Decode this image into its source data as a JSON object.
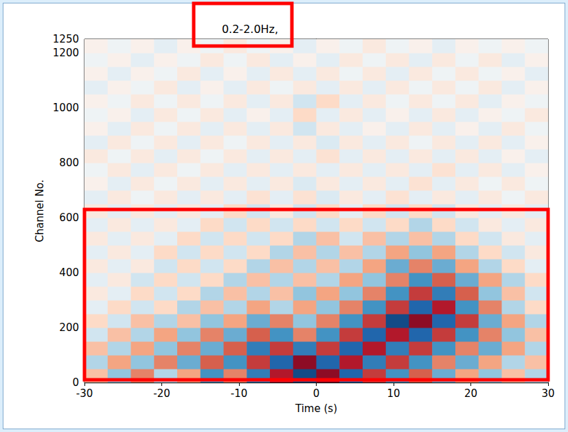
{
  "chart_data": {
    "type": "heatmap",
    "title": "0.2-2.0Hz,",
    "x_label": "Time (s)",
    "y_label": "Channel No.",
    "xlim": [
      -30,
      30
    ],
    "xticks": [
      -30,
      -20,
      -10,
      0,
      10,
      20,
      30
    ],
    "ylim": [
      0,
      1250
    ],
    "yticks": [
      0,
      200,
      400,
      600,
      800,
      1000,
      1200
    ],
    "grid": false,
    "time_bins": [
      -30,
      -27,
      -24,
      -21,
      -18,
      -15,
      -12,
      -9,
      -6,
      -3,
      0,
      3,
      6,
      9,
      12,
      15,
      18,
      21,
      24,
      27,
      30
    ],
    "channel_bins": [
      0,
      50,
      100,
      150,
      200,
      250,
      300,
      350,
      400,
      450,
      500,
      550,
      600,
      650,
      700,
      750,
      800,
      850,
      900,
      950,
      1000,
      1050,
      1100,
      1150,
      1200,
      1250
    ],
    "color_range": [
      -1,
      1
    ],
    "cells": [
      [
        0.3,
        -0.4,
        0.5,
        -0.3,
        0.4,
        -0.6,
        0.5,
        -0.7,
        0.8,
        -0.9,
        0.9,
        -0.8,
        0.7,
        -0.6,
        0.6,
        -0.5,
        0.4,
        -0.4,
        0.3,
        -0.3
      ],
      [
        -0.3,
        0.4,
        -0.4,
        0.5,
        -0.5,
        0.6,
        -0.6,
        0.7,
        -0.8,
        0.9,
        -0.8,
        0.8,
        -0.7,
        0.7,
        -0.6,
        0.5,
        -0.5,
        0.4,
        -0.3,
        0.3
      ],
      [
        0.3,
        -0.3,
        0.4,
        -0.4,
        0.5,
        -0.5,
        0.6,
        -0.7,
        0.7,
        -0.7,
        0.7,
        -0.8,
        0.8,
        -0.7,
        0.7,
        -0.6,
        0.5,
        -0.5,
        0.4,
        -0.3
      ],
      [
        -0.2,
        0.3,
        -0.3,
        0.4,
        -0.4,
        0.5,
        -0.5,
        0.6,
        -0.6,
        0.5,
        -0.6,
        0.7,
        -0.8,
        0.8,
        -0.8,
        0.7,
        -0.6,
        0.5,
        -0.4,
        0.3
      ],
      [
        0.2,
        -0.2,
        0.3,
        -0.3,
        0.3,
        -0.4,
        0.4,
        -0.5,
        0.5,
        -0.4,
        0.5,
        -0.6,
        0.7,
        -0.9,
        0.9,
        -0.8,
        0.7,
        -0.5,
        0.4,
        -0.3
      ],
      [
        -0.1,
        0.2,
        -0.2,
        0.2,
        -0.3,
        0.3,
        -0.3,
        0.4,
        -0.3,
        0.4,
        -0.4,
        0.5,
        -0.6,
        0.7,
        -0.8,
        0.8,
        -0.6,
        0.5,
        -0.3,
        0.2
      ],
      [
        0.1,
        -0.1,
        0.2,
        -0.2,
        0.2,
        -0.3,
        0.3,
        -0.3,
        0.3,
        -0.4,
        0.4,
        -0.4,
        0.5,
        -0.6,
        0.7,
        -0.7,
        0.6,
        -0.4,
        0.3,
        -0.2
      ],
      [
        -0.1,
        0.1,
        -0.2,
        0.2,
        -0.2,
        0.2,
        -0.3,
        0.3,
        -0.3,
        0.3,
        -0.3,
        0.4,
        -0.4,
        0.5,
        -0.6,
        0.6,
        -0.5,
        0.4,
        -0.3,
        0.2
      ],
      [
        0.1,
        -0.1,
        0.1,
        -0.2,
        0.2,
        -0.2,
        0.2,
        -0.3,
        0.3,
        -0.3,
        0.3,
        -0.3,
        0.4,
        -0.5,
        0.5,
        -0.5,
        0.4,
        -0.3,
        0.2,
        -0.1
      ],
      [
        -0.1,
        0.1,
        -0.1,
        0.2,
        -0.2,
        0.2,
        -0.2,
        0.2,
        -0.3,
        0.3,
        -0.3,
        0.3,
        -0.3,
        0.4,
        -0.4,
        0.4,
        -0.3,
        0.2,
        -0.2,
        0.1
      ],
      [
        0.1,
        -0.1,
        0.1,
        -0.1,
        0.2,
        -0.2,
        0.2,
        -0.2,
        0.2,
        -0.3,
        0.3,
        -0.2,
        0.3,
        -0.3,
        0.3,
        -0.3,
        0.2,
        -0.2,
        0.1,
        -0.1
      ],
      [
        -0.1,
        0.1,
        -0.1,
        0.1,
        -0.1,
        0.2,
        -0.2,
        0.2,
        -0.2,
        0.2,
        -0.2,
        0.2,
        -0.2,
        0.2,
        -0.3,
        0.2,
        -0.2,
        0.1,
        -0.1,
        0.1
      ],
      [
        0.1,
        -0.1,
        0.1,
        -0.1,
        0.1,
        -0.1,
        0.2,
        -0.2,
        0.1,
        -0.2,
        0.2,
        -0.1,
        0.2,
        -0.2,
        0.2,
        -0.2,
        0.1,
        -0.1,
        0.1,
        -0.1
      ],
      [
        -0.1,
        0.1,
        -0.05,
        0.1,
        -0.1,
        0.1,
        -0.1,
        0.15,
        -0.1,
        0.15,
        -0.15,
        0.1,
        -0.1,
        0.15,
        -0.1,
        0.1,
        -0.1,
        0.1,
        -0.05,
        0.1
      ],
      [
        0.05,
        -0.1,
        0.1,
        -0.05,
        0.1,
        -0.1,
        0.1,
        -0.1,
        0.1,
        -0.15,
        0.1,
        -0.1,
        0.1,
        -0.1,
        0.15,
        -0.1,
        0.1,
        -0.05,
        0.1,
        -0.05
      ],
      [
        -0.05,
        0.1,
        -0.1,
        0.1,
        -0.05,
        0.1,
        -0.1,
        0.1,
        -0.1,
        0.1,
        -0.1,
        0.1,
        -0.1,
        0.1,
        -0.1,
        0.15,
        -0.1,
        0.1,
        -0.1,
        0.05
      ],
      [
        0.1,
        -0.05,
        0.1,
        -0.1,
        0.1,
        -0.05,
        0.1,
        -0.1,
        0.1,
        -0.1,
        0.15,
        -0.1,
        0.1,
        -0.1,
        0.1,
        -0.1,
        0.1,
        -0.1,
        0.05,
        -0.1
      ],
      [
        -0.1,
        0.1,
        -0.05,
        0.1,
        -0.1,
        0.1,
        -0.05,
        0.1,
        -0.1,
        0.1,
        -0.15,
        0.1,
        -0.1,
        0.1,
        -0.05,
        0.1,
        -0.1,
        0.1,
        -0.1,
        0.05
      ],
      [
        0.05,
        -0.1,
        0.1,
        -0.05,
        0.1,
        -0.1,
        0.1,
        -0.1,
        0.1,
        -0.2,
        0.1,
        -0.1,
        0.05,
        -0.1,
        0.1,
        -0.1,
        0.05,
        -0.1,
        0.1,
        -0.05
      ],
      [
        -0.05,
        0.05,
        -0.1,
        0.1,
        -0.05,
        0.1,
        -0.1,
        0.05,
        -0.1,
        0.2,
        -0.1,
        0.1,
        -0.1,
        0.05,
        -0.1,
        0.1,
        -0.1,
        0.05,
        -0.05,
        0.1
      ],
      [
        0.05,
        -0.05,
        0.1,
        -0.05,
        0.1,
        -0.05,
        0.1,
        -0.1,
        0.1,
        -0.2,
        0.2,
        -0.1,
        0.1,
        -0.05,
        0.1,
        -0.05,
        0.1,
        -0.1,
        0.05,
        -0.05
      ],
      [
        -0.1,
        0.05,
        -0.05,
        0.1,
        -0.1,
        0.05,
        -0.1,
        0.1,
        -0.05,
        0.1,
        -0.1,
        0.1,
        -0.1,
        0.1,
        -0.05,
        0.1,
        -0.05,
        0.1,
        -0.1,
        0.05
      ],
      [
        0.05,
        -0.1,
        0.05,
        -0.05,
        0.1,
        -0.1,
        0.05,
        -0.1,
        0.1,
        -0.1,
        0.1,
        -0.05,
        0.1,
        -0.1,
        0.1,
        -0.05,
        0.1,
        -0.05,
        0.05,
        -0.1
      ],
      [
        -0.05,
        0.05,
        -0.1,
        0.05,
        -0.05,
        0.1,
        -0.05,
        0.1,
        -0.1,
        0.05,
        -0.1,
        0.1,
        -0.05,
        0.1,
        -0.1,
        0.1,
        -0.05,
        0.1,
        -0.1,
        0.05
      ],
      [
        0.05,
        -0.05,
        0.05,
        -0.1,
        0.05,
        -0.05,
        0.1,
        -0.05,
        0.05,
        -0.1,
        0.05,
        -0.05,
        0.1,
        -0.05,
        0.05,
        -0.1,
        0.05,
        -0.05,
        0.05,
        -0.05
      ]
    ],
    "highlight_box": {
      "x": [
        -30,
        30
      ],
      "y": [
        10,
        630
      ],
      "color": "#ff0000"
    }
  }
}
